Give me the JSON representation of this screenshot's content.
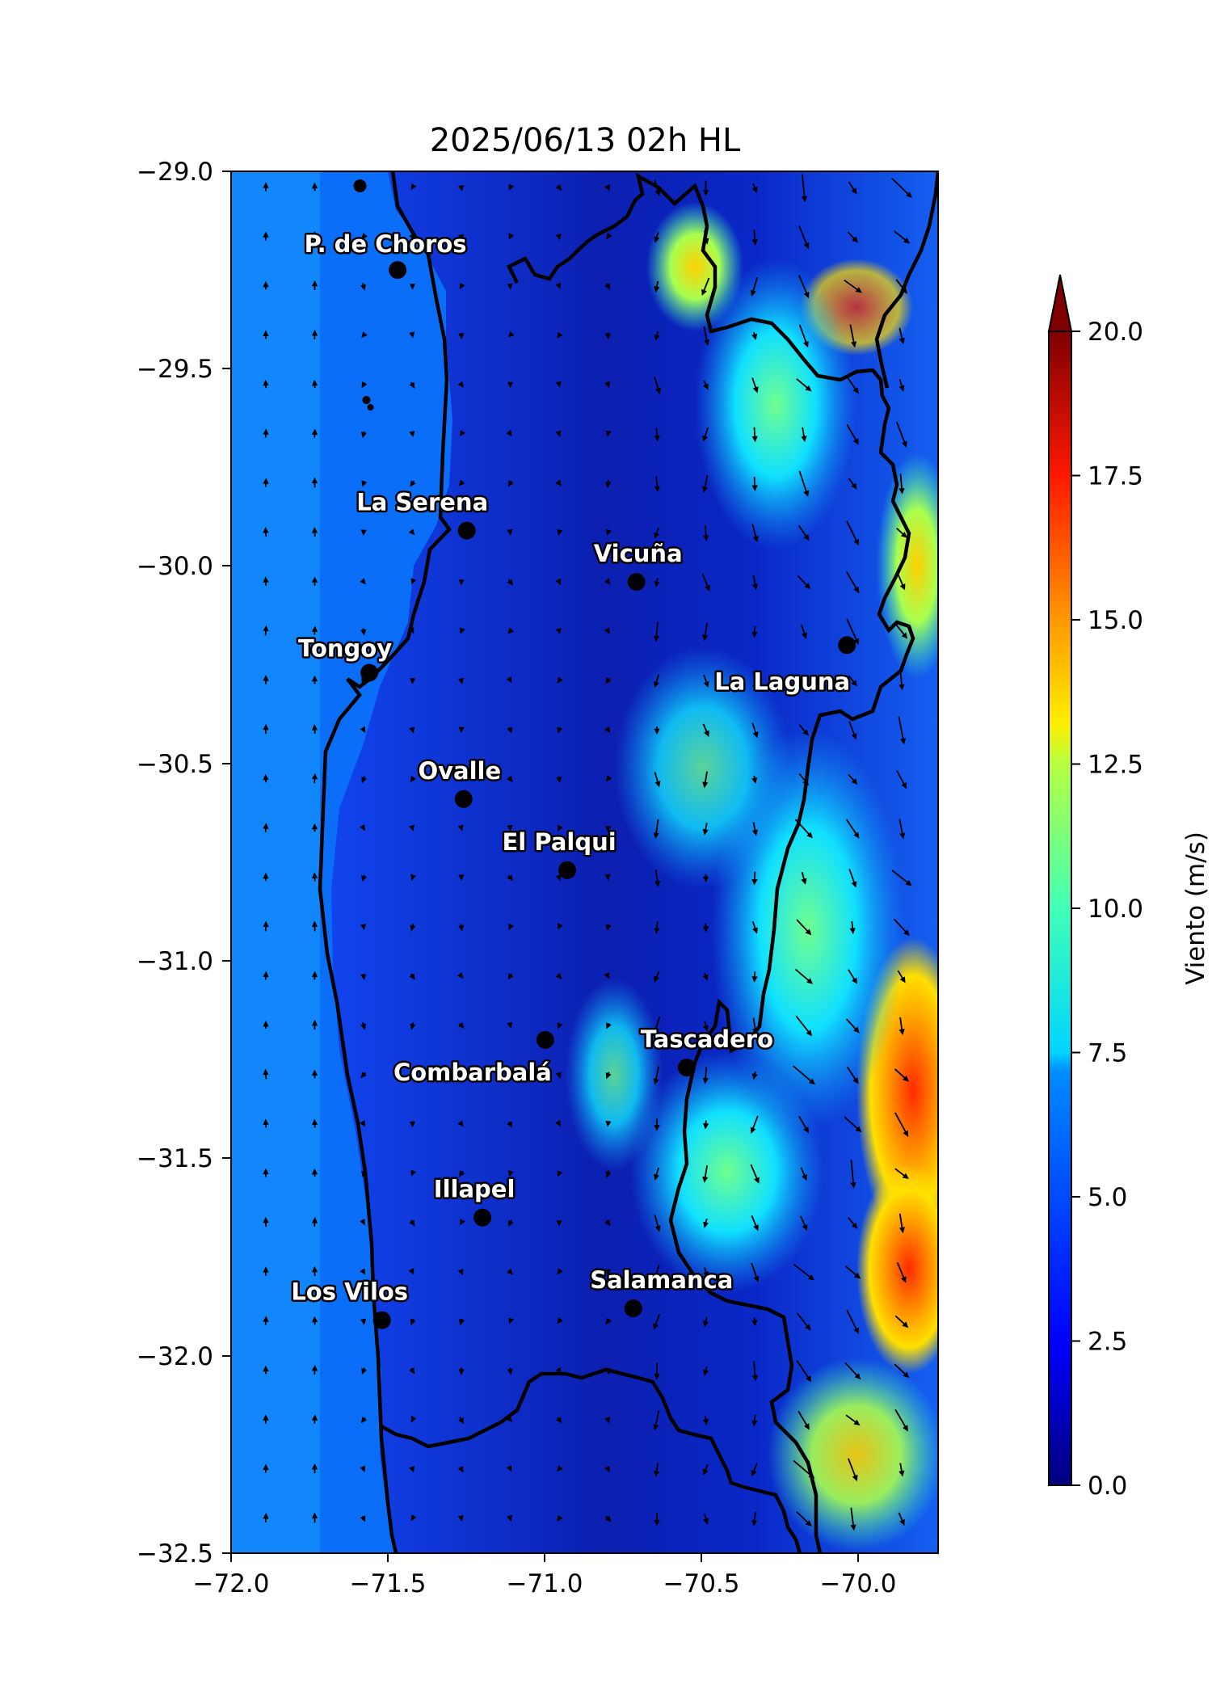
{
  "title": "2025/06/13 02h HL",
  "x_ticks": [
    "−72.0",
    "−71.5",
    "−71.0",
    "−70.5",
    "−70.0"
  ],
  "y_ticks": [
    "−29.0",
    "−29.5",
    "−30.0",
    "−30.5",
    "−31.0",
    "−31.5",
    "−32.0",
    "−32.5"
  ],
  "colorbar": {
    "label": "Viento (m/s)",
    "ticks": [
      "0.0",
      "2.5",
      "5.0",
      "7.5",
      "10.0",
      "12.5",
      "15.0",
      "17.5",
      "20.0"
    ],
    "extend": "max",
    "colormap": "jet"
  },
  "map": {
    "lon_range": [
      -72.0,
      -69.75
    ],
    "lat_range": [
      -32.5,
      -29.0
    ],
    "field": "wind speed with wind vectors",
    "cities": [
      {
        "name": "P. de Choros",
        "lon": -71.47,
        "lat": -29.25
      },
      {
        "name": "La Serena",
        "lon": -71.25,
        "lat": -29.91
      },
      {
        "name": "Vicuña",
        "lon": -70.71,
        "lat": -30.04
      },
      {
        "name": "Tongoy",
        "lon": -71.56,
        "lat": -30.27
      },
      {
        "name": "La Laguna",
        "lon": -70.04,
        "lat": -30.2
      },
      {
        "name": "Ovalle",
        "lon": -71.26,
        "lat": -30.59
      },
      {
        "name": "El Palqui",
        "lon": -70.93,
        "lat": -30.77
      },
      {
        "name": "Tascadero",
        "lon": -70.55,
        "lat": -31.27
      },
      {
        "name": "Combarbalá",
        "lon": -71.0,
        "lat": -31.2
      },
      {
        "name": "Illapel",
        "lon": -71.2,
        "lat": -31.65
      },
      {
        "name": "Los Vilos",
        "lon": -71.52,
        "lat": -31.91
      },
      {
        "name": "Salamanca",
        "lon": -70.72,
        "lat": -31.88
      }
    ]
  }
}
